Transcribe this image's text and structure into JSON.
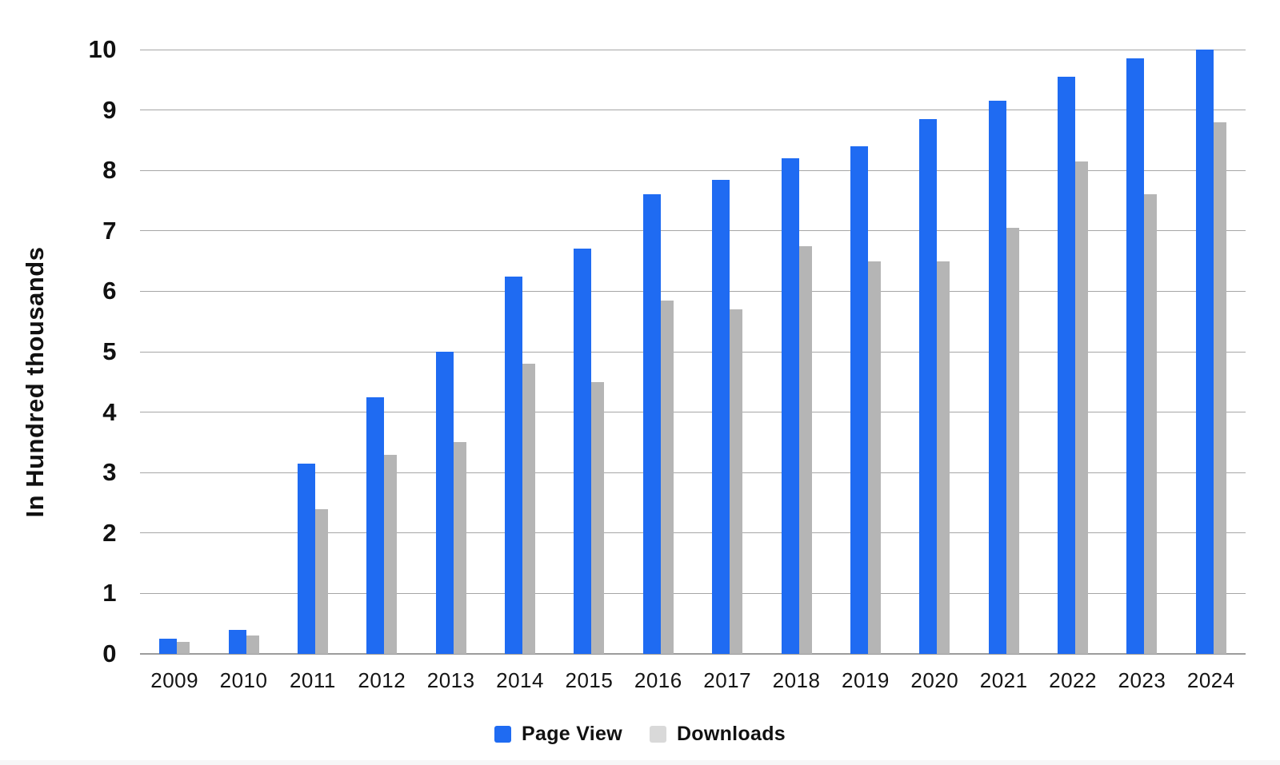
{
  "chart_data": {
    "type": "bar",
    "title": "",
    "ylabel": "In Hundred thousands",
    "xlabel": "",
    "ylim": [
      0,
      10
    ],
    "yticks": [
      0,
      1,
      2,
      3,
      4,
      5,
      6,
      7,
      8,
      9,
      10
    ],
    "grid": "horizontal gridlines at each integer, baseline darker",
    "legend_position": "bottom-center",
    "categories": [
      "2009",
      "2010",
      "2011",
      "2012",
      "2013",
      "2014",
      "2015",
      "2016",
      "2017",
      "2018",
      "2019",
      "2020",
      "2021",
      "2022",
      "2023",
      "2024"
    ],
    "series": [
      {
        "name": "Page View",
        "color": "#1F6BF2",
        "values": [
          0.25,
          0.4,
          3.15,
          4.25,
          5.0,
          6.25,
          6.7,
          7.6,
          7.85,
          8.2,
          8.4,
          8.85,
          9.15,
          9.55,
          9.85,
          10.0
        ]
      },
      {
        "name": "Downloads",
        "color": "#B5B5B5",
        "values": [
          0.2,
          0.3,
          2.4,
          3.3,
          3.5,
          4.8,
          4.5,
          5.85,
          5.7,
          6.75,
          6.5,
          6.5,
          7.05,
          8.15,
          7.6,
          8.8
        ]
      }
    ]
  },
  "legend": {
    "items": [
      {
        "label": "Page View",
        "swatch_color": "#1F6BF2"
      },
      {
        "label": "Downloads",
        "swatch_color": "#D9D9D9"
      }
    ]
  },
  "colors": {
    "page_view_bar": "#1F6BF2",
    "downloads_bar": "#B5B5B5",
    "legend_downloads_swatch": "#D9D9D9",
    "gridline": "#A6A6A6",
    "axis_line": "#9C9C9C",
    "text": "#111111",
    "background": "#FFFFFF"
  }
}
